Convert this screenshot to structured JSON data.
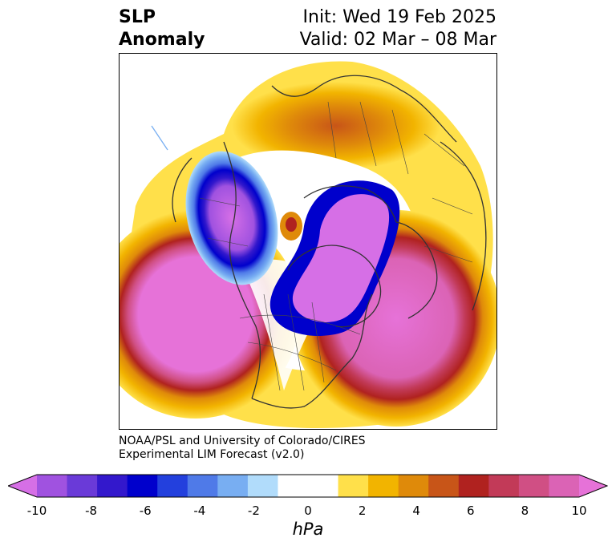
{
  "title": {
    "left_line1": "SLP",
    "left_line2": "Anomaly",
    "right_line1": "Init: Wed 19 Feb 2025",
    "right_line2": "Valid: 02 Mar – 08 Mar"
  },
  "credits": {
    "line1": "NOAA/PSL and University of Colorado/CIRES",
    "line2": "Experimental LIM Forecast (v2.0)"
  },
  "colorbar": {
    "unit": "hPa",
    "ticks": [
      "-10",
      "-8",
      "-6",
      "-4",
      "-2",
      "0",
      "2",
      "4",
      "6",
      "8",
      "10"
    ],
    "range": [
      -10,
      10
    ],
    "colors": [
      "#d66fe6",
      "#a052e0",
      "#6a3ad8",
      "#3318cc",
      "#0000cc",
      "#2340dd",
      "#4f7ae8",
      "#78aef2",
      "#b1dcfb",
      "#ffffff",
      "#ffffff",
      "#ffe04a",
      "#f2b400",
      "#df8a0a",
      "#c85518",
      "#b0221f",
      "#c23a58",
      "#d04f84",
      "#db63b5",
      "#e672d8"
    ]
  },
  "map": {
    "projection": "north-polar-stereographic",
    "features": [
      "coastlines",
      "country-borders",
      "state-borders"
    ]
  }
}
